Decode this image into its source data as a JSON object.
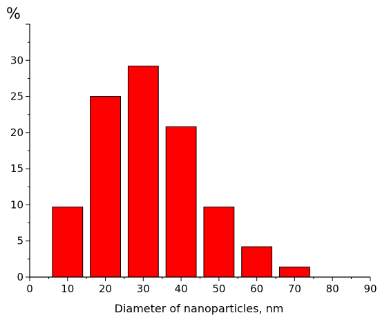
{
  "chart_data": {
    "type": "bar",
    "x": [
      10,
      20,
      30,
      40,
      50,
      60,
      70
    ],
    "values": [
      9.7,
      25.0,
      29.2,
      20.8,
      9.7,
      4.2,
      1.4
    ],
    "title": "",
    "xlabel": "Diameter of nanoparticles, nm",
    "ylabel": "%",
    "xlim": [
      0,
      90
    ],
    "ylim": [
      0,
      35
    ],
    "x_ticks": [
      "0",
      "10",
      "20",
      "30",
      "40",
      "50",
      "60",
      "70",
      "80",
      "90"
    ],
    "y_ticks": [
      "0",
      "5",
      "10",
      "15",
      "20",
      "25",
      "30"
    ],
    "bar_width": 8,
    "bar_color": "#ff0000",
    "bar_edge_color": "#000000",
    "grid": false,
    "legend": "none"
  }
}
